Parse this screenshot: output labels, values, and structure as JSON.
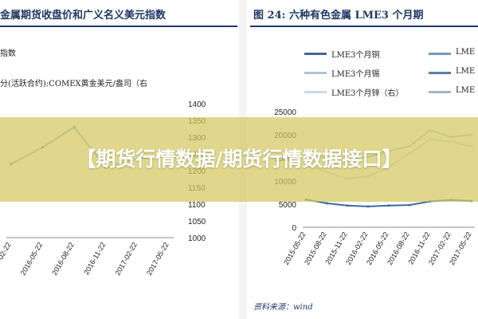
{
  "banner": {
    "text": "【期货行情数据/期货行情数据接口】"
  },
  "left_panel": {
    "title": "金属期货收盘价和广义名义美元指数",
    "sub_label_top": "指数",
    "sub_label_axis": "分(活跃合约):COMEX黄金美元/盎司（右",
    "right_axis_ticks": [
      "1400",
      "1350",
      "1300",
      "1250",
      "1200",
      "1150",
      "1100",
      "1050",
      "1000"
    ],
    "x_ticks": [
      "2016-02-22",
      "2016-05-22",
      "2016-08-22",
      "2016-11-22",
      "2017-02-22",
      "2017-05-22"
    ]
  },
  "right_panel": {
    "title": "图 24:  六种有色金属 LME3 个月期",
    "legend": [
      {
        "label": "LME3个月铜",
        "color": "#3d6a9e"
      },
      {
        "label": "LME3个月锡",
        "color": "#a8c4de"
      },
      {
        "label": "LME3个月锌（右）",
        "color": "#c9d9e8"
      },
      {
        "label": "LME",
        "color": "#6f9ac6"
      },
      {
        "label": "LME",
        "color": "#5a7fa8"
      },
      {
        "label": "LME",
        "color": "#9fb8d0"
      }
    ],
    "y_ticks": [
      "25000",
      "20000",
      "15000",
      "10000",
      "5000",
      "0"
    ],
    "x_ticks": [
      "2015-05-22",
      "2015-08-22",
      "2015-11-22",
      "2016-02-22",
      "2016-05-22",
      "2016-08-22",
      "2016-11-22",
      "2017-02-22",
      "2017-05-22"
    ],
    "source": "资料来源：wind"
  },
  "chart_data": [
    {
      "type": "line",
      "title": "金属期货收盘价和广义名义美元指数",
      "ylabel": "COMEX黄金美元/盎司（右",
      "x": [
        "2016-02-22",
        "2016-05-22",
        "2016-08-22",
        "2016-11-22",
        "2017-02-22",
        "2017-05-22"
      ],
      "right_ylim": [
        1000,
        1400
      ],
      "series": [
        {
          "name": "COMEX黄金美元/盎司",
          "values": [
            1220,
            1270,
            1330,
            1210,
            1235,
            1250
          ]
        }
      ]
    },
    {
      "type": "line",
      "title": "六种有色金属 LME3 个月期",
      "x": [
        "2015-05-22",
        "2015-08-22",
        "2015-11-22",
        "2016-02-22",
        "2016-05-22",
        "2016-08-22",
        "2016-11-22",
        "2017-02-22",
        "2017-05-22"
      ],
      "ylim": [
        0,
        25000
      ],
      "series": [
        {
          "name": "LME3个月铜",
          "values": [
            6000,
            5200,
            4700,
            4500,
            4700,
            4800,
            5600,
            5900,
            5700
          ]
        },
        {
          "name": "LME3个月锡",
          "values": [
            15500,
            15000,
            14800,
            15200,
            16500,
            17500,
            21000,
            19500,
            20000
          ]
        },
        {
          "name": "LME3个月锌（右）",
          "values": [
            13500,
            12000,
            10500,
            11000,
            13000,
            16000,
            19000,
            18500,
            17500
          ]
        }
      ]
    }
  ]
}
